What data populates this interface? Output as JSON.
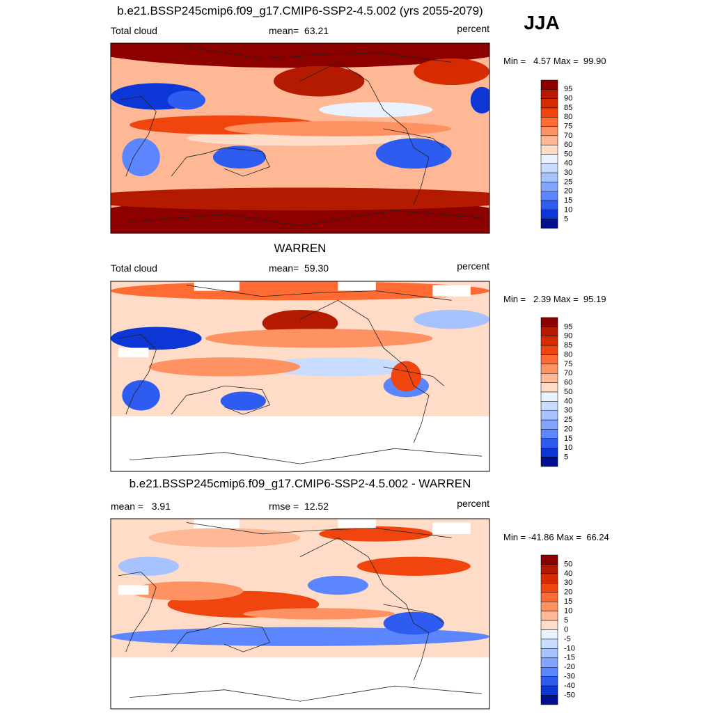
{
  "season": "JJA",
  "colorbar_colors": [
    "#8c0000",
    "#b31a00",
    "#d62b00",
    "#f0450f",
    "#ff6b33",
    "#ff9263",
    "#ffb896",
    "#ffdcc8",
    "#eaf2ff",
    "#c8dcff",
    "#a6c2ff",
    "#82a6ff",
    "#5b86ff",
    "#2f5cf0",
    "#0d36d6",
    "#00108f"
  ],
  "panels": [
    {
      "title": "b.e21.BSSP245cmip6.f09_g17.CMIP6-SSP2-4.5.002 (yrs 2055-2079)",
      "left_label": "Total cloud",
      "center_label": "mean=  63.21",
      "right_label": "percent",
      "minmax": "Min =   4.57 Max =  99.90",
      "colorbar_labels": [
        95,
        90,
        85,
        80,
        75,
        70,
        60,
        50,
        40,
        30,
        25,
        20,
        15,
        10,
        5
      ]
    },
    {
      "title": "WARREN",
      "left_label": "Total cloud",
      "center_label": "mean=  59.30",
      "right_label": "percent",
      "minmax": "Min =   2.39 Max =  95.19",
      "colorbar_labels": [
        95,
        90,
        85,
        80,
        75,
        70,
        60,
        50,
        40,
        30,
        25,
        20,
        15,
        10,
        5
      ]
    },
    {
      "title": "b.e21.BSSP245cmip6.f09_g17.CMIP6-SSP2-4.5.002 - WARREN",
      "left_label": "mean =   3.91",
      "center_label": "rmse =  12.52",
      "right_label": "percent",
      "minmax": "Min = -41.86 Max =  66.24",
      "colorbar_labels": [
        50,
        40,
        30,
        20,
        15,
        10,
        5,
        0,
        -5,
        -10,
        -15,
        -20,
        -30,
        -40,
        -50
      ]
    }
  ]
}
